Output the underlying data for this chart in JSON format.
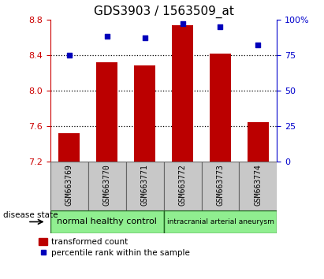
{
  "title": "GDS3903 / 1563509_at",
  "categories": [
    "GSM663769",
    "GSM663770",
    "GSM663771",
    "GSM663772",
    "GSM663773",
    "GSM663774"
  ],
  "bar_values": [
    7.52,
    8.32,
    8.28,
    8.74,
    8.42,
    7.65
  ],
  "percentile_values": [
    75,
    88,
    87,
    97,
    95,
    82
  ],
  "ylim_left": [
    7.2,
    8.8
  ],
  "ylim_right": [
    0,
    100
  ],
  "yticks_left": [
    7.2,
    7.6,
    8.0,
    8.4,
    8.8
  ],
  "yticks_right": [
    0,
    25,
    50,
    75,
    100
  ],
  "ytick_labels_right": [
    "0",
    "25",
    "50",
    "75",
    "100%"
  ],
  "bar_color": "#bb0000",
  "dot_color": "#0000bb",
  "grid_color": "#000000",
  "bar_bottom": 7.2,
  "groups": [
    {
      "label": "normal healthy control",
      "indices": [
        0,
        1,
        2
      ],
      "color": "#90ee90"
    },
    {
      "label": "intracranial arterial aneurysm",
      "indices": [
        3,
        4,
        5
      ],
      "color": "#90ee90"
    }
  ],
  "group_box_color": "#c8c8c8",
  "disease_state_label": "disease state",
  "legend_bar_label": "transformed count",
  "legend_dot_label": "percentile rank within the sample",
  "left_axis_color": "#cc0000",
  "right_axis_color": "#0000cc",
  "title_fontsize": 11,
  "tick_fontsize": 8,
  "label_fontsize": 8
}
